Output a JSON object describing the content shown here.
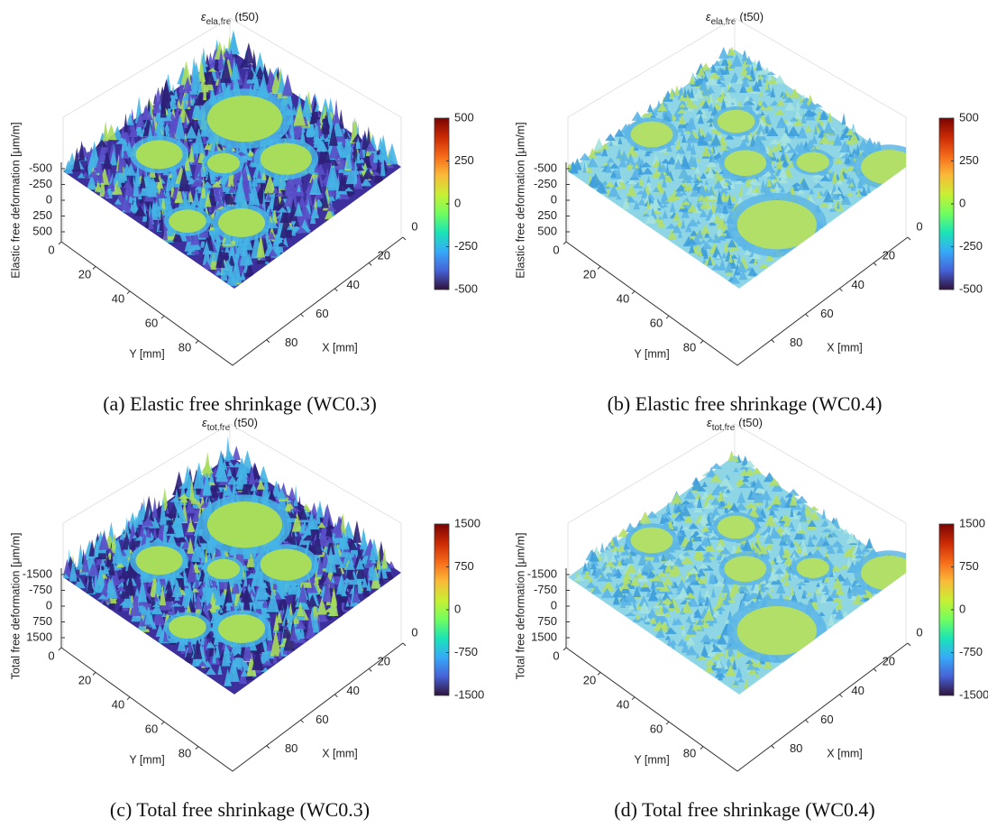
{
  "panels": [
    {
      "title": {
        "symbol": "ε",
        "subscript": "ela,fre",
        "suffix": "(t50)"
      },
      "zlabel": "Elastic free deformation [μm/m]",
      "xlabel": "X [mm]",
      "ylabel": "Y [mm]",
      "xlim": [
        0,
        100
      ],
      "xticks": [
        0,
        20,
        40,
        60,
        80
      ],
      "ylim": [
        0,
        100
      ],
      "yticks": [
        0,
        20,
        40,
        60,
        80
      ],
      "zlim": [
        -500,
        500
      ],
      "zticks": [
        -500,
        -250,
        0,
        250,
        500
      ],
      "clim": [
        -500,
        500
      ],
      "cticks": [
        -500,
        -250,
        0,
        250,
        500
      ],
      "colormap": [
        "#30123b",
        "#4662d7",
        "#36aaf9",
        "#1ae4b6",
        "#72fe5e",
        "#c8ef34",
        "#faba39",
        "#f66b19",
        "#ca2a04",
        "#7a0403"
      ],
      "surface_colors": {
        "base": "#3d2f9c",
        "spike": "#45b4e6",
        "flat": "#a8dd5c"
      },
      "caption": "(a) Elastic free shrinkage (WC0.3)"
    },
    {
      "title": {
        "symbol": "ε",
        "subscript": "ela,fre",
        "suffix": "(t50)"
      },
      "zlabel": "Elastic free deformation [μm/m]",
      "xlabel": "X [mm]",
      "ylabel": "Y [mm]",
      "xlim": [
        0,
        100
      ],
      "xticks": [
        0,
        20,
        40,
        60,
        80
      ],
      "ylim": [
        0,
        100
      ],
      "yticks": [
        0,
        20,
        40,
        60,
        80
      ],
      "zlim": [
        -500,
        500
      ],
      "zticks": [
        -500,
        -250,
        0,
        250,
        500
      ],
      "clim": [
        -500,
        500
      ],
      "cticks": [
        -500,
        -250,
        0,
        250,
        500
      ],
      "colormap": [
        "#30123b",
        "#4662d7",
        "#36aaf9",
        "#1ae4b6",
        "#72fe5e",
        "#c8ef34",
        "#faba39",
        "#f66b19",
        "#ca2a04",
        "#7a0403"
      ],
      "surface_colors": {
        "base": "#8ed6e6",
        "spike": "#5db6e6",
        "flat": "#b2df68"
      },
      "caption": "(b) Elastic free shrinkage (WC0.4)"
    },
    {
      "title": {
        "symbol": "ε",
        "subscript": "tot,fre",
        "suffix": "(t50)"
      },
      "zlabel": "Total free deformation [μm/m]",
      "xlabel": "X [mm]",
      "ylabel": "Y [mm]",
      "xlim": [
        0,
        100
      ],
      "xticks": [
        0,
        20,
        40,
        60,
        80
      ],
      "ylim": [
        0,
        100
      ],
      "yticks": [
        0,
        20,
        40,
        60,
        80
      ],
      "zlim": [
        -1500,
        1500
      ],
      "zticks": [
        -1500,
        -750,
        0,
        750,
        1500
      ],
      "clim": [
        -1500,
        1500
      ],
      "cticks": [
        -1500,
        -750,
        0,
        750,
        1500
      ],
      "colormap": [
        "#30123b",
        "#4662d7",
        "#36aaf9",
        "#1ae4b6",
        "#72fe5e",
        "#c8ef34",
        "#faba39",
        "#f66b19",
        "#ca2a04",
        "#7a0403"
      ],
      "surface_colors": {
        "base": "#3d2f9c",
        "spike": "#45b4e6",
        "flat": "#a8dd5c"
      },
      "caption": "(c) Total free shrinkage (WC0.3)"
    },
    {
      "title": {
        "symbol": "ε",
        "subscript": "tot,fre",
        "suffix": "(t50)"
      },
      "zlabel": "Total free deformation [μm/m]",
      "xlabel": "X [mm]",
      "ylabel": "Y [mm]",
      "xlim": [
        0,
        100
      ],
      "xticks": [
        0,
        20,
        40,
        60,
        80
      ],
      "ylim": [
        0,
        100
      ],
      "yticks": [
        0,
        20,
        40,
        60,
        80
      ],
      "zlim": [
        -1500,
        1500
      ],
      "zticks": [
        -1500,
        -750,
        0,
        750,
        1500
      ],
      "clim": [
        -1500,
        1500
      ],
      "cticks": [
        -1500,
        -750,
        0,
        750,
        1500
      ],
      "colormap": [
        "#30123b",
        "#4662d7",
        "#36aaf9",
        "#1ae4b6",
        "#72fe5e",
        "#c8ef34",
        "#faba39",
        "#f66b19",
        "#ca2a04",
        "#7a0403"
      ],
      "surface_colors": {
        "base": "#8ed6e6",
        "spike": "#5db6e6",
        "flat": "#b2df68"
      },
      "caption": "(d) Total free shrinkage (WC0.4)"
    }
  ]
}
